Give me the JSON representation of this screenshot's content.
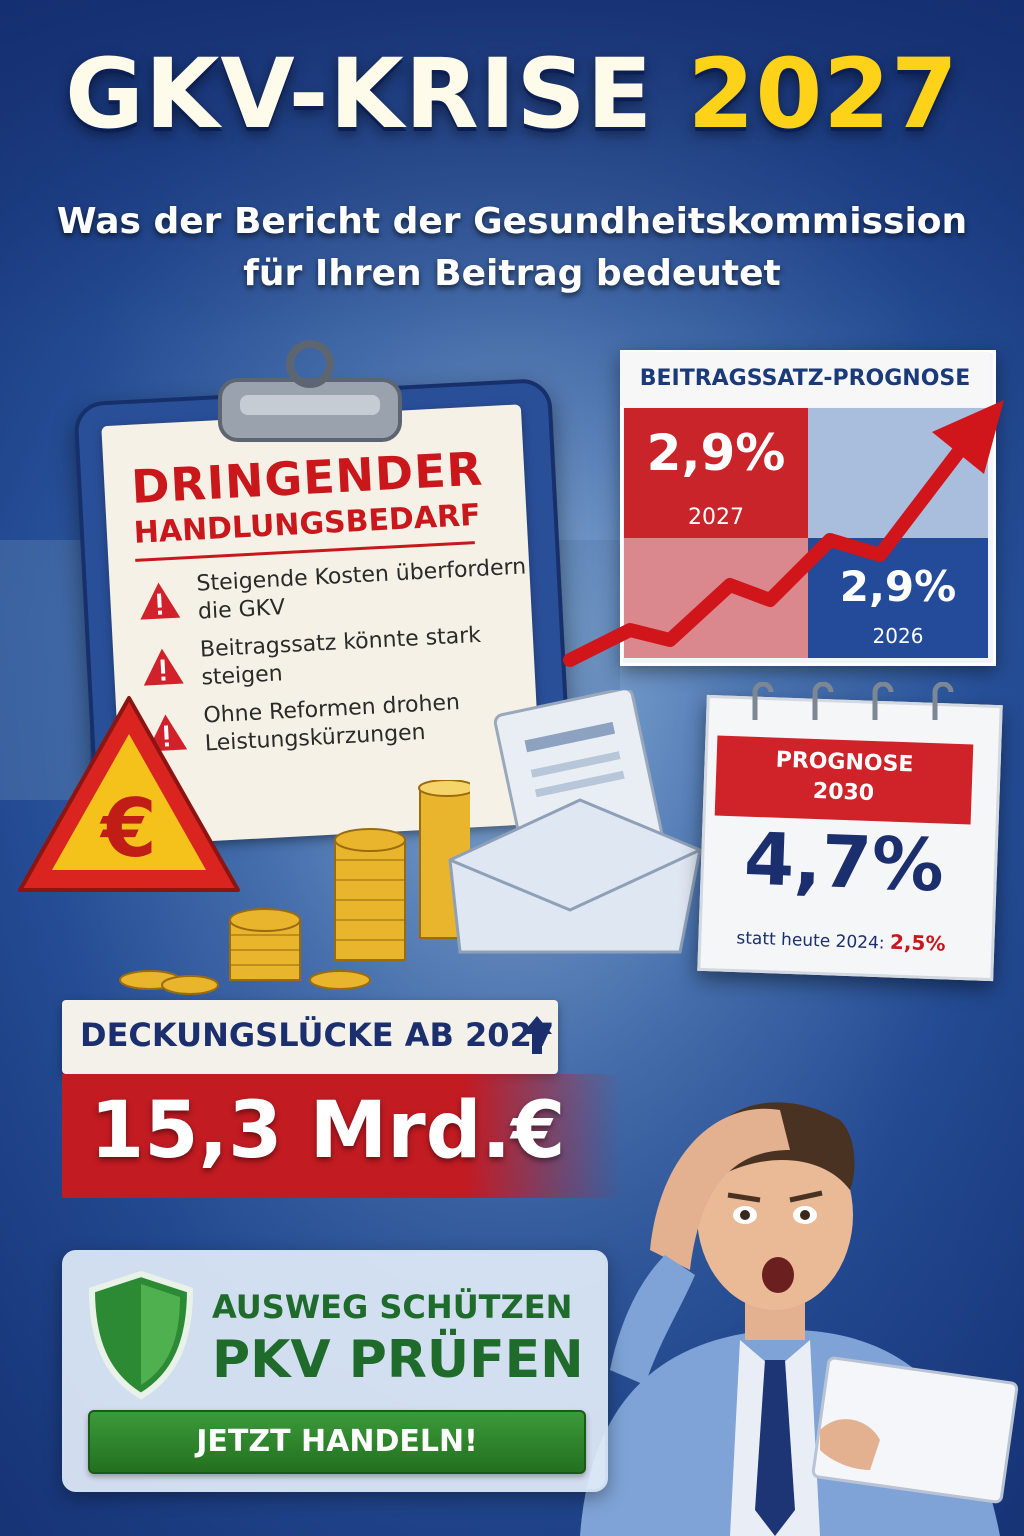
{
  "header": {
    "title_main": "GKV-KRISE",
    "title_year": "2027",
    "subtitle_line1": "Was der Bericht der Gesundheitskommission",
    "subtitle_line2": "für Ihren Beitrag bedeutet"
  },
  "clipboard": {
    "heading": "DRINGENDER",
    "subheading": "HANDLUNGSBEDARF",
    "bullets": [
      "Steigende Kosten überfordern die GKV",
      "Beitragssatz könnte stark steigen",
      "Ohne Reformen drohen Leistungskürzungen"
    ]
  },
  "forecast": {
    "title": "BEITRAGSSATZ-PROGNOSE",
    "value_2027": "2,9%",
    "year_2027": "2027",
    "value_2026": "2,9%",
    "year_2026": "2026"
  },
  "calendar": {
    "label_line1": "PROGNOSE",
    "label_line2": "2030",
    "value": "4,7%",
    "note_prefix": "statt heute 2024:",
    "note_value": "2,5%"
  },
  "gap": {
    "label": "DECKUNGSLÜCKE AB 2027",
    "value": "15,3 Mrd.€"
  },
  "cta": {
    "subline": "AUSWEG SCHÜTZEN",
    "headline": "PKV PRÜFEN",
    "button": "JETZT HANDELN!"
  },
  "colors": {
    "accent_red": "#c8242a",
    "accent_yellow": "#ffd21a",
    "navy": "#1b2f6e",
    "green": "#1f6b2c"
  },
  "icons": [
    "warning-icon",
    "euro-sign-icon",
    "shield-icon",
    "arrow-up-icon",
    "rising-arrow-icon"
  ]
}
